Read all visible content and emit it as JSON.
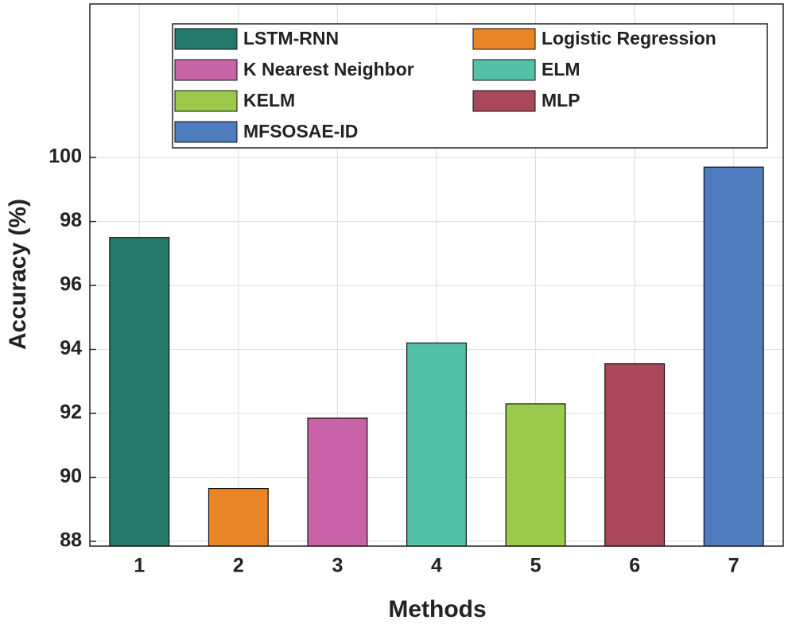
{
  "chart_data": {
    "type": "bar",
    "x_label": "Methods",
    "y_label": "Accuracy (%)",
    "series": [
      {
        "name": "LSTM-RNN",
        "color": "#237a6a",
        "x": [
          1
        ],
        "values": [
          97.5
        ]
      },
      {
        "name": "Logistic Regression",
        "color": "#e88527",
        "x": [
          2
        ],
        "values": [
          89.65
        ]
      },
      {
        "name": "K Nearest Neighbor",
        "color": "#c963a8",
        "x": [
          3
        ],
        "values": [
          91.85
        ]
      },
      {
        "name": "ELM",
        "color": "#52c1a7",
        "x": [
          4
        ],
        "values": [
          94.2
        ]
      },
      {
        "name": "KELM",
        "color": "#9bc94b",
        "x": [
          5
        ],
        "values": [
          92.3
        ]
      },
      {
        "name": "MLP",
        "color": "#a84858",
        "x": [
          6
        ],
        "values": [
          93.55
        ]
      },
      {
        "name": "MFSOSAE-ID",
        "color": "#4f7bbf",
        "x": [
          7
        ],
        "values": [
          99.7
        ]
      }
    ],
    "xlim": [
      0.5,
      7.5
    ],
    "xticks": [
      1,
      2,
      3,
      4,
      5,
      6,
      7
    ],
    "ylim": [
      87.85,
      104.8
    ],
    "yticks": [
      88,
      90,
      92,
      94,
      96,
      98,
      100
    ],
    "grid": true,
    "legend": "top"
  }
}
